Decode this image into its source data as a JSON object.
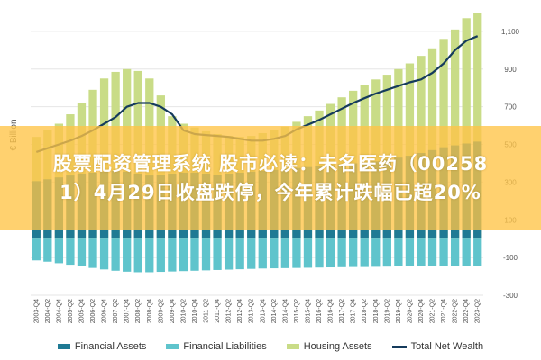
{
  "banner": {
    "line1": "股票配资管理系统 股市必读：未名医药（00258",
    "line2": "1）4月29日收盘跌停，今年累计跌幅已超20%"
  },
  "colors": {
    "financial_assets": "#1f7a94",
    "financial_liabilities": "#5fc4cc",
    "housing_assets": "#c9dc87",
    "total_net_wealth": "#153b5c",
    "banner": "#ffc446",
    "grid": "#e6e6e6"
  },
  "chart_data": {
    "type": "bar",
    "ylabel": "€ Billion",
    "ylim": [
      -300,
      1200
    ],
    "yticks": [
      -300,
      -100,
      100,
      300,
      500,
      700,
      900,
      1100
    ],
    "ytick_labels": [
      "-300",
      "-100",
      "100",
      "300",
      "500",
      "700",
      "900",
      "1,100"
    ],
    "grid": true,
    "legend_position": "bottom",
    "categories": [
      "2003-Q4",
      "2004-Q2",
      "2004-Q4",
      "2005-Q2",
      "2005-Q4",
      "2006-Q2",
      "2006-Q4",
      "2007-Q2",
      "2007-Q4",
      "2008-Q2",
      "2008-Q4",
      "2009-Q2",
      "2009-Q4",
      "2010-Q2",
      "2010-Q4",
      "2011-Q2",
      "2011-Q4",
      "2012-Q2",
      "2012-Q4",
      "2013-Q2",
      "2013-Q4",
      "2014-Q2",
      "2014-Q4",
      "2015-Q2",
      "2015-Q4",
      "2016-Q2",
      "2016-Q4",
      "2017-Q2",
      "2017-Q4",
      "2018-Q2",
      "2018-Q4",
      "2019-Q2",
      "2019-Q4",
      "2020-Q2",
      "2020-Q4",
      "2021-Q2",
      "2021-Q4",
      "2022-Q2",
      "2022-Q4",
      "2023-Q2"
    ],
    "series": [
      {
        "name": "Financial Assets",
        "type": "bar",
        "values": [
          305,
          315,
          325,
          335,
          345,
          350,
          355,
          360,
          355,
          345,
          335,
          340,
          345,
          350,
          350,
          345,
          340,
          345,
          350,
          355,
          360,
          365,
          370,
          375,
          380,
          385,
          390,
          395,
          400,
          405,
          410,
          420,
          430,
          440,
          455,
          470,
          485,
          495,
          505,
          515
        ]
      },
      {
        "name": "Financial Liabilities",
        "type": "bar",
        "values": [
          -115,
          -122,
          -130,
          -138,
          -146,
          -155,
          -163,
          -170,
          -175,
          -178,
          -178,
          -176,
          -174,
          -172,
          -170,
          -168,
          -166,
          -164,
          -162,
          -160,
          -158,
          -157,
          -156,
          -155,
          -154,
          -153,
          -152,
          -151,
          -150,
          -150,
          -149,
          -148,
          -147,
          -147,
          -146,
          -146,
          -145,
          -145,
          -145,
          -145
        ]
      },
      {
        "name": "Housing Assets",
        "type": "bar",
        "values": [
          540,
          575,
          610,
          660,
          720,
          790,
          850,
          885,
          900,
          890,
          850,
          760,
          650,
          610,
          590,
          570,
          555,
          545,
          540,
          545,
          560,
          575,
          595,
          620,
          650,
          680,
          715,
          750,
          785,
          815,
          845,
          870,
          900,
          930,
          970,
          1010,
          1060,
          1110,
          1170,
          1200
        ]
      },
      {
        "name": "Total Net Wealth",
        "type": "line",
        "values": [
          460,
          480,
          500,
          520,
          545,
          575,
          610,
          645,
          700,
          720,
          720,
          700,
          660,
          575,
          555,
          550,
          545,
          540,
          530,
          520,
          520,
          530,
          545,
          580,
          605,
          630,
          660,
          690,
          720,
          745,
          770,
          790,
          810,
          830,
          845,
          880,
          930,
          1000,
          1050,
          1075
        ]
      }
    ]
  },
  "legend": {
    "items": [
      {
        "label": "Financial Assets"
      },
      {
        "label": "Financial Liabilities"
      },
      {
        "label": "Housing Assets"
      },
      {
        "label": "Total Net Wealth"
      }
    ]
  }
}
